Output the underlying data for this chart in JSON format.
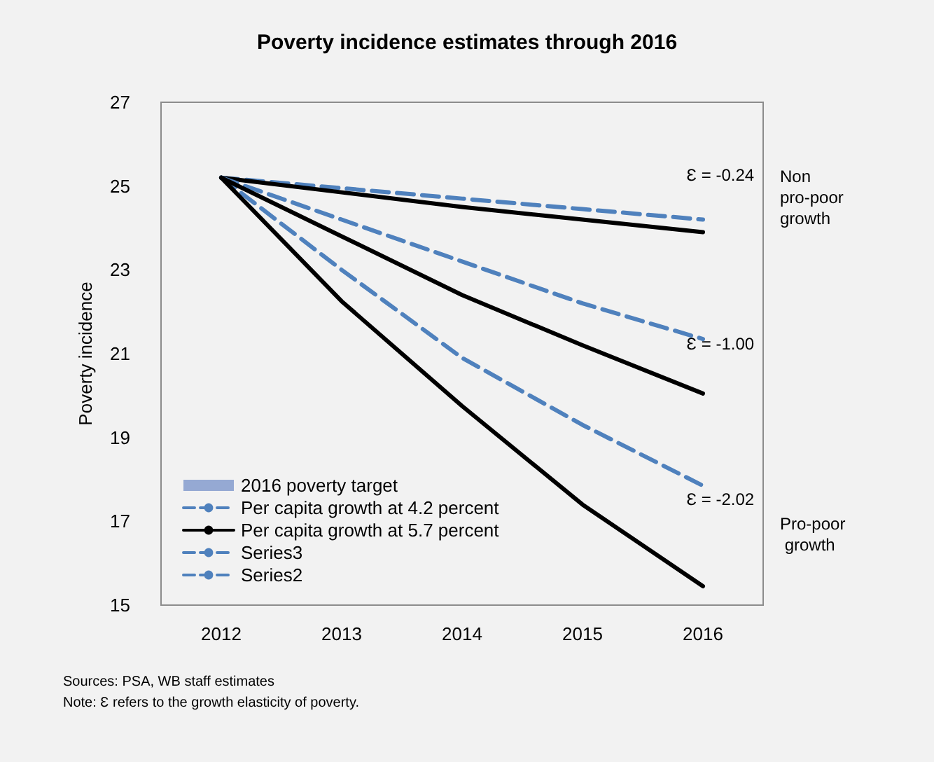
{
  "chart_data": {
    "type": "line",
    "title": "Poverty incidence estimates through 2016",
    "ylabel": "Poverty incidence",
    "categories": [
      "2012",
      "2013",
      "2014",
      "2015",
      "2016"
    ],
    "ylim": [
      15,
      27
    ],
    "yticks": [
      15,
      17,
      19,
      21,
      23,
      25,
      27
    ],
    "grid": false,
    "legend": "bottom left",
    "marker": "none",
    "series": [
      {
        "name": "2016 poverty target",
        "type": "bar",
        "color": "#95a9d3",
        "values": [
          null,
          null,
          null,
          null,
          null
        ]
      },
      {
        "name": "Per capita growth at 4.2 percent",
        "color": "#4f81bd",
        "line_style": "dashed",
        "values": [
          25.2,
          24.95,
          24.7,
          24.45,
          24.2
        ]
      },
      {
        "name": "Per capita growth at 5.7 percent",
        "color": "#000000",
        "line_style": "solid",
        "values": [
          25.2,
          24.85,
          24.5,
          24.2,
          23.9
        ]
      },
      {
        "name": "Series3",
        "color": "#4f81bd",
        "line_style": "dashed",
        "values": [
          25.2,
          24.2,
          23.2,
          22.2,
          21.35
        ]
      },
      {
        "name": "Series2",
        "color": "#4f81bd",
        "line_style": "dashed",
        "values": [
          25.2,
          23.0,
          20.9,
          19.3,
          17.85
        ]
      },
      {
        "color": "#000000",
        "line_style": "solid",
        "values": [
          25.2,
          23.8,
          22.4,
          21.2,
          20.05
        ]
      },
      {
        "color": "#000000",
        "line_style": "solid",
        "values": [
          25.2,
          22.25,
          19.75,
          17.4,
          15.45
        ]
      }
    ],
    "annotations": [
      "Ɛ = -0.24",
      "Ɛ = -1.00",
      "Ɛ = -2.02",
      "Non pro-poor growth",
      "Pro-poor growth",
      "Sources: PSA, WB staff estimates",
      "Note: Ɛ refers to the growth elasticity of poverty."
    ]
  }
}
